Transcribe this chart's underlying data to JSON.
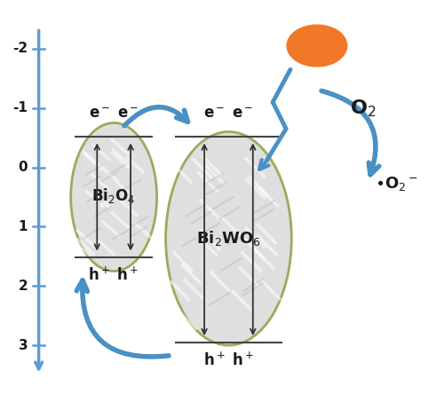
{
  "fig_width": 5.0,
  "fig_height": 4.44,
  "dpi": 100,
  "arrow_color": "#4A90C4",
  "ellipse_edge_color": "#8BA84A",
  "text_color": "#1A1A1A",
  "label_bi2o4": "Bi$_2$O$_4$",
  "label_bi2wo6": "Bi$_2$WO$_6$",
  "label_e1": "e$^-$ e$^-$",
  "label_h1": "h$^+$ h$^+$",
  "label_e2": "e$^-$ e$^-$",
  "label_h2": "h$^+$ h$^+$",
  "label_O2": "O$_2$",
  "label_O2rad": "$\\bullet$O$_2$$^-$",
  "sun_color": "#F07828",
  "background_color": "#FFFFFF",
  "axis_color": "#5B9BD5"
}
